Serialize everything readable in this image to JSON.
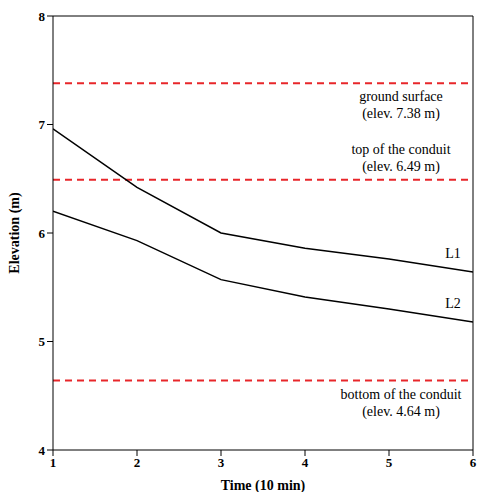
{
  "chart_data": {
    "type": "line",
    "x_label": "Time (10 min)",
    "y_label": "Elevation (m)",
    "x": [
      1,
      2,
      3,
      4,
      5,
      6
    ],
    "series": [
      {
        "name": "L1",
        "color": "#000000",
        "values": [
          6.96,
          6.42,
          6.0,
          5.86,
          5.76,
          5.64
        ]
      },
      {
        "name": "L2",
        "color": "#000000",
        "values": [
          6.2,
          5.93,
          5.57,
          5.41,
          5.3,
          5.18
        ]
      }
    ],
    "xlim": [
      1,
      6
    ],
    "ylim": [
      4,
      8
    ],
    "xticks": [
      1,
      2,
      3,
      4,
      5,
      6
    ],
    "yticks": [
      4,
      5,
      6,
      7,
      8
    ],
    "grid": false,
    "reference_lines": [
      {
        "value": 7.38,
        "label": [
          "ground surface",
          "(elev. 7.38 m)"
        ],
        "color": "#e8262a",
        "line_style": "dashed"
      },
      {
        "value": 6.49,
        "label": [
          "top of the conduit",
          "(elev. 6.49 m)"
        ],
        "color": "#e8262a",
        "line_style": "dashed"
      },
      {
        "value": 4.64,
        "label": [
          "bottom of the conduit",
          "(elev. 4.64 m)"
        ],
        "color": "#e8262a",
        "line_style": "dashed"
      }
    ]
  }
}
